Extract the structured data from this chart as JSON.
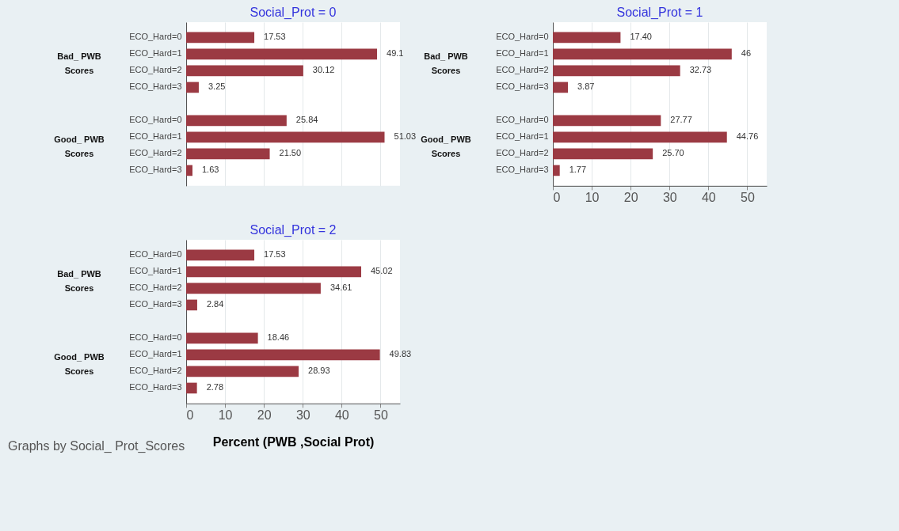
{
  "chart_data": [
    {
      "type": "bar",
      "orientation": "horizontal",
      "title": "Social_Prot = 0",
      "annotations": [
        "Bad_ PWB\nScores",
        "Good_ PWB\nScores"
      ],
      "categories": [
        "ECO_Hard=0",
        "ECO_Hard=1",
        "ECO_Hard=2",
        "ECO_Hard=3",
        null,
        "ECO_Hard=0",
        "ECO_Hard=1",
        "ECO_Hard=2",
        "ECO_Hard=3"
      ],
      "color": "#9b3a43",
      "values": [
        17.53,
        49.1,
        30.12,
        3.25,
        null,
        25.84,
        51.03,
        21.5,
        1.63
      ],
      "value_labels": [
        "17.53",
        "49.1",
        "30.12",
        "3.25",
        null,
        "25.84",
        "51.03",
        "21.50",
        "1.63"
      ],
      "xlim": [
        0,
        55
      ],
      "xticks": [
        0,
        10,
        20,
        30,
        40,
        50
      ],
      "grid": "x",
      "tick_labels": "y"
    },
    {
      "type": "bar",
      "orientation": "horizontal",
      "title": "Social_Prot = 1",
      "annotations": [
        "Bad_ PWB\nScores",
        "Good_ PWB\nScores"
      ],
      "categories": [
        "ECO_Hard=0",
        "ECO_Hard=1",
        "ECO_Hard=2",
        "ECO_Hard=3",
        null,
        "ECO_Hard=0",
        "ECO_Hard=1",
        "ECO_Hard=2",
        "ECO_Hard=3"
      ],
      "color": "#9b3a43",
      "values": [
        17.4,
        46,
        32.73,
        3.87,
        null,
        27.77,
        44.76,
        25.7,
        1.77
      ],
      "value_labels": [
        "17.40",
        "46",
        "32.73",
        "3.87",
        null,
        "27.77",
        "44.76",
        "25.70",
        "1.77"
      ],
      "xlim": [
        0,
        55
      ],
      "xticks": [
        0,
        10,
        20,
        30,
        40,
        50
      ],
      "grid": "x"
    },
    {
      "type": "bar",
      "orientation": "horizontal",
      "title": "Social_Prot = 2",
      "xlabel": "Percent (PWB ,Social  Prot)",
      "annotations": [
        "Bad_ PWB\nScores",
        "Good_ PWB\nScores",
        "Graphs by Social_ Prot_Scores"
      ],
      "categories": [
        "ECO_Hard=0",
        "ECO_Hard=1",
        "ECO_Hard=2",
        "ECO_Hard=3",
        null,
        "ECO_Hard=0",
        "ECO_Hard=1",
        "ECO_Hard=2",
        "ECO_Hard=3"
      ],
      "color": "#9b3a43",
      "values": [
        17.53,
        45.02,
        34.61,
        2.84,
        null,
        18.46,
        49.83,
        28.93,
        2.78
      ],
      "value_labels": [
        "17.53",
        "45.02",
        "34.61",
        "2.84",
        null,
        "18.46",
        "49.83",
        "28.93",
        "2.78"
      ],
      "xlim": [
        0,
        55
      ],
      "xticks": [
        0,
        10,
        20,
        30,
        40,
        50
      ],
      "grid": "x"
    }
  ]
}
